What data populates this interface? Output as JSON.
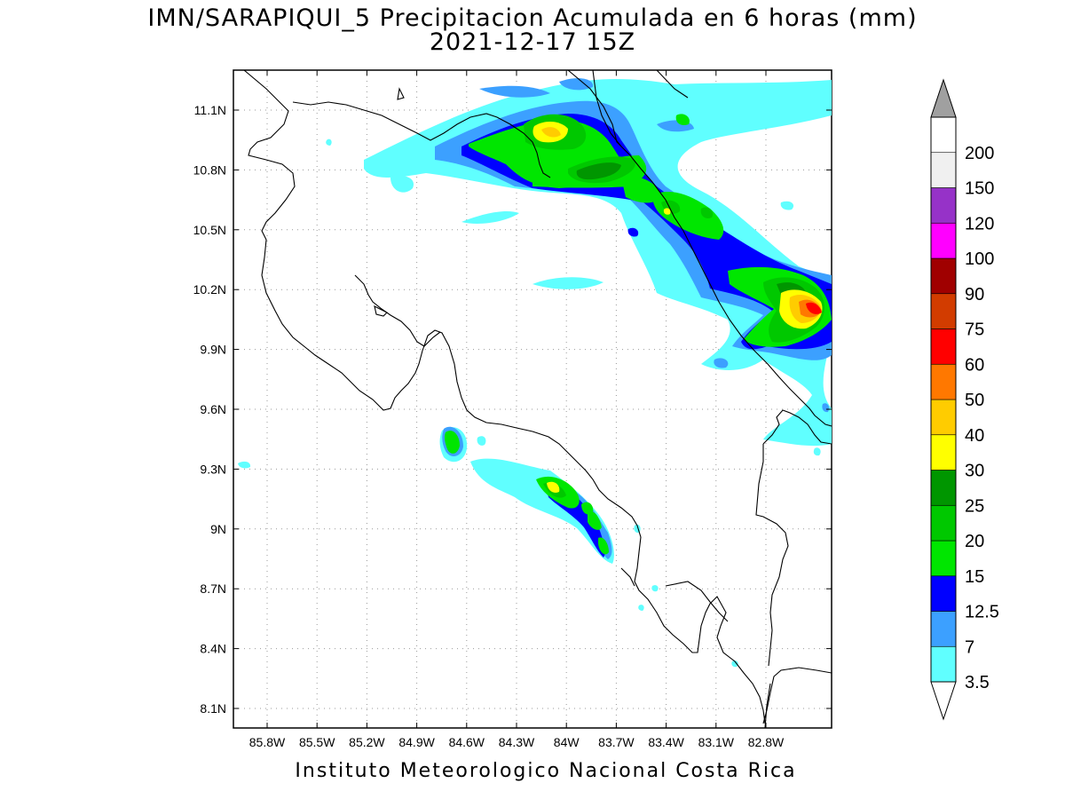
{
  "title": {
    "line1": "IMN/SARAPIQUI_5 Precipitacion Acumulada en 6 horas (mm)",
    "line2": "2021-12-17 15Z"
  },
  "footer": "Instituto Meteorologico Nacional Costa Rica",
  "map": {
    "lon_labels": [
      "85.8W",
      "85.5W",
      "85.2W",
      "84.9W",
      "84.6W",
      "84.3W",
      "84W",
      "83.7W",
      "83.4W",
      "83.1W",
      "82.8W"
    ],
    "lat_labels": [
      "11.1N",
      "10.8N",
      "10.5N",
      "10.2N",
      "9.9N",
      "9.6N",
      "9.3N",
      "9N",
      "8.7N",
      "8.4N",
      "8.1N"
    ]
  },
  "colorbar": {
    "labels": [
      "3.5",
      "7",
      "12.5",
      "15",
      "20",
      "25",
      "30",
      "40",
      "50",
      "60",
      "75",
      "90",
      "100",
      "120",
      "150",
      "200"
    ],
    "colors": [
      "#60ffff",
      "#3ca0ff",
      "#0000ff",
      "#00e600",
      "#00c800",
      "#009600",
      "#ffff00",
      "#ffcc00",
      "#ff7800",
      "#ff0000",
      "#d23c00",
      "#a00000",
      "#ff00ff",
      "#9632c8",
      "#f0f0f0",
      "#a0a0a0"
    ]
  }
}
